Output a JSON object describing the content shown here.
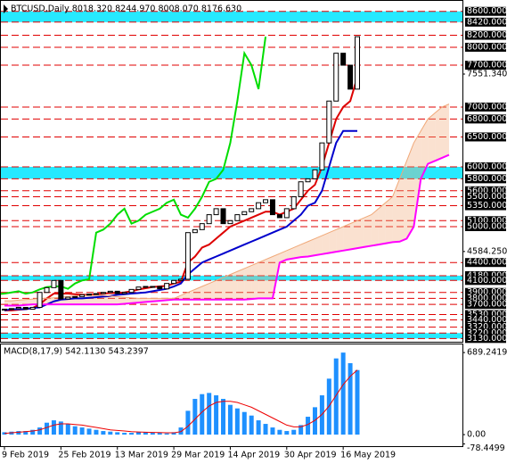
{
  "chart_data": [
    {
      "type": "candlestick",
      "title": "BTCUSD,Daily 8018.320 8244.970 8008.070 8176.630",
      "ylim": [
        3075,
        8790
      ],
      "yticks": [
        {
          "value": 7551.34,
          "label": "7551.340"
        },
        {
          "value": 4584.25,
          "label": "4584.250"
        }
      ],
      "levels": [
        {
          "value": 8600,
          "label": "8600.000"
        },
        {
          "value": 8420,
          "label": "8420.000"
        },
        {
          "value": 8200,
          "label": "8200.000"
        },
        {
          "value": 8000,
          "label": "8000.000"
        },
        {
          "value": 7700,
          "label": "7700.000"
        },
        {
          "value": 7000,
          "label": "7000.000"
        },
        {
          "value": 6800,
          "label": "6800.000"
        },
        {
          "value": 6500,
          "label": "6500.000"
        },
        {
          "value": 6000,
          "label": "6000.000"
        },
        {
          "value": 5800,
          "label": "5800.000"
        },
        {
          "value": 5600,
          "label": "5600.000"
        },
        {
          "value": 5500,
          "label": "5500.000"
        },
        {
          "value": 5350,
          "label": "5350.000"
        },
        {
          "value": 5100,
          "label": "5100.000"
        },
        {
          "value": 5000,
          "label": "5000.000"
        },
        {
          "value": 4400,
          "label": "4400.000"
        },
        {
          "value": 4180,
          "label": "4180.000"
        },
        {
          "value": 4100,
          "label": "4100.000"
        },
        {
          "value": 3900,
          "label": "3900.000"
        },
        {
          "value": 3800,
          "label": "3800.000"
        },
        {
          "value": 3700,
          "label": "3700.000"
        },
        {
          "value": 3530,
          "label": "3530.000"
        },
        {
          "value": 3440,
          "label": "3440.000"
        },
        {
          "value": 3320,
          "label": "3320.000"
        },
        {
          "value": 3220,
          "label": "3220.000"
        },
        {
          "value": 3130,
          "label": "3130.000"
        }
      ],
      "zones": [
        [
          8420,
          8600
        ],
        [
          5800,
          6000
        ],
        [
          4100,
          4180
        ],
        [
          3130,
          3220
        ]
      ],
      "zone_color": "#00e5ff",
      "level_color": "#e00000",
      "chikou_color": "#00dd00",
      "values": [
        3620,
        3630,
        3650,
        3620,
        3650,
        3900,
        3980,
        4100,
        3790,
        3820,
        3830,
        3860,
        3870,
        3880,
        3900,
        3920,
        3880,
        3900,
        3950,
        3990,
        4000,
        4000,
        3960,
        4050,
        4100,
        4120,
        4900,
        4950,
        5050,
        5200,
        5300,
        5050,
        5100,
        5200,
        5250,
        5300,
        5400,
        5450,
        5200,
        5150,
        5300,
        5500,
        5750,
        5800,
        5950,
        6400,
        7100,
        7900,
        7700,
        7300,
        8176.63,
        null,
        null,
        null,
        null,
        null,
        null,
        null,
        null,
        null,
        null,
        null,
        null,
        null
      ],
      "series": [
        {
          "color": "#dd0000",
          "values": [
            3600,
            3600,
            3610,
            3620,
            3640,
            3700,
            3800,
            3880,
            3880,
            3880,
            3870,
            3860,
            3860,
            3870,
            3880,
            3890,
            3890,
            3900,
            3920,
            3950,
            3970,
            3990,
            4000,
            4010,
            4050,
            4080,
            4400,
            4500,
            4650,
            4700,
            4800,
            4900,
            5000,
            5050,
            5100,
            5150,
            5200,
            5250,
            5250,
            5200,
            5250,
            5300,
            5450,
            5600,
            5700,
            6000,
            6400,
            6800,
            7000,
            7100,
            7500,
            null,
            null,
            null,
            null,
            null,
            null,
            null,
            null,
            null,
            null,
            null,
            null,
            null
          ]
        },
        {
          "color": "#0000cc",
          "values": [
            3600,
            3620,
            3620,
            3620,
            3640,
            3650,
            3700,
            3750,
            3780,
            3790,
            3800,
            3800,
            3810,
            3820,
            3830,
            3840,
            3860,
            3870,
            3880,
            3890,
            3900,
            3920,
            3940,
            3960,
            4000,
            4050,
            4200,
            4300,
            4400,
            4450,
            4500,
            4550,
            4600,
            4650,
            4700,
            4750,
            4800,
            4850,
            4900,
            4950,
            5000,
            5100,
            5200,
            5350,
            5400,
            5600,
            6000,
            6400,
            6600,
            6600,
            6600,
            null,
            null,
            null,
            null,
            null,
            null,
            null,
            null,
            null,
            null,
            null,
            null,
            null
          ]
        },
        {
          "color": "#ff00ff",
          "values": [
            3680,
            3680,
            3680,
            3690,
            3700,
            3700,
            3700,
            3700,
            3700,
            3700,
            3700,
            3700,
            3700,
            3700,
            3700,
            3700,
            3700,
            3710,
            3720,
            3730,
            3740,
            3750,
            3760,
            3770,
            3780,
            3780,
            3780,
            3780,
            3780,
            3780,
            3780,
            3780,
            3780,
            3780,
            3780,
            3790,
            3800,
            3800,
            3800,
            4400,
            4450,
            4470,
            4490,
            4500,
            4520,
            4540,
            4560,
            4580,
            4600,
            4620,
            4640,
            4660,
            4680,
            4700,
            4720,
            4740,
            4750,
            4800,
            5000,
            5800,
            6050,
            6100,
            6150,
            6200
          ]
        },
        {
          "color": "#f0a878",
          "values": [
            3760,
            3760,
            3770,
            3780,
            3790,
            3800,
            3800,
            3810,
            3820,
            3830,
            3840,
            3850,
            3850,
            3850,
            3850,
            3840,
            3830,
            3820,
            3810,
            3800,
            3800,
            3800,
            3800,
            3800,
            3800,
            3850,
            3900,
            3950,
            4000,
            4050,
            4100,
            4150,
            4200,
            4250,
            4300,
            4350,
            4400,
            4450,
            4500,
            4550,
            4600,
            4650,
            4700,
            4750,
            4800,
            4850,
            4900,
            4950,
            5000,
            5050,
            5100,
            5150,
            5200,
            5300,
            5400,
            5500,
            5800,
            6100,
            6400,
            6600,
            6800,
            6900,
            7000,
            7050
          ]
        }
      ]
    },
    {
      "type": "bar",
      "title": "MACD(8,17,9) 542.1130 543.2397",
      "ylim": [
        -97,
        765
      ],
      "yticks": [
        {
          "value": 689.2419,
          "label": "689.2419"
        },
        {
          "value": 0,
          "label": "0.00"
        },
        {
          "value": -78.4499,
          "label": "-78.4499"
        }
      ],
      "categories": [
        "9 Feb 2019",
        null,
        null,
        null,
        null,
        null,
        null,
        null,
        "25 Feb 2019",
        null,
        null,
        null,
        null,
        null,
        null,
        null,
        "13 Mar 2019",
        null,
        null,
        null,
        null,
        null,
        null,
        null,
        "29 Mar 2019",
        null,
        null,
        null,
        null,
        null,
        null,
        null,
        "14 Apr 2019",
        null,
        null,
        null,
        null,
        null,
        null,
        null,
        "30 Apr 2019",
        null,
        null,
        null,
        null,
        null,
        null,
        null,
        "16 May 2019",
        null,
        null,
        null,
        null,
        null,
        null,
        null,
        null,
        null,
        null,
        null,
        null,
        null,
        null,
        null
      ],
      "color": "#1e90ff",
      "values": [
        20,
        25,
        30,
        30,
        40,
        60,
        100,
        120,
        110,
        90,
        70,
        60,
        50,
        40,
        30,
        25,
        20,
        15,
        15,
        20,
        20,
        15,
        15,
        10,
        20,
        60,
        200,
        300,
        340,
        350,
        330,
        300,
        250,
        220,
        190,
        160,
        120,
        90,
        60,
        40,
        30,
        40,
        80,
        150,
        230,
        330,
        470,
        640,
        689,
        600,
        542.113,
        null,
        null,
        null,
        null,
        null,
        null,
        null,
        null,
        null,
        null,
        null,
        null,
        null
      ],
      "signal": {
        "color": "#ee0000",
        "values": [
          10,
          15,
          20,
          25,
          30,
          40,
          60,
          80,
          90,
          90,
          85,
          80,
          70,
          60,
          50,
          40,
          35,
          30,
          25,
          22,
          20,
          18,
          17,
          15,
          15,
          25,
          70,
          130,
          190,
          240,
          270,
          280,
          280,
          270,
          250,
          230,
          200,
          170,
          140,
          110,
          80,
          65,
          65,
          85,
          120,
          170,
          240,
          330,
          420,
          490,
          543.2397,
          null,
          null,
          null,
          null,
          null,
          null,
          null,
          null,
          null,
          null,
          null,
          null,
          null
        ]
      }
    }
  ]
}
